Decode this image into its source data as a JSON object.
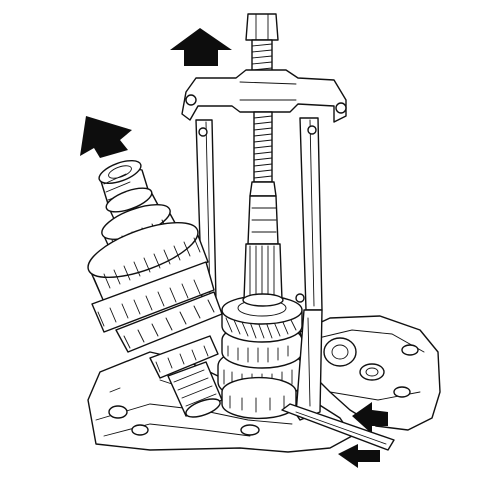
{
  "figure": {
    "kind": "technical line illustration",
    "palette": {
      "line": "#111111",
      "background": "#ffffff",
      "arrow_fill": "#0d0d0d"
    },
    "parts": {
      "puller": "bearing-puller",
      "mainshaft": "mainshaft-gear-assembly",
      "countershaft": "countershaft-gear-stack",
      "case": "transmission-case"
    },
    "arrows": [
      {
        "name": "lift-arrow-puller",
        "direction": "up"
      },
      {
        "name": "lift-arrow-mainshaft",
        "direction": "up-left"
      },
      {
        "name": "press-arrow-upper",
        "direction": "left"
      },
      {
        "name": "press-arrow-lower",
        "direction": "left"
      }
    ]
  }
}
